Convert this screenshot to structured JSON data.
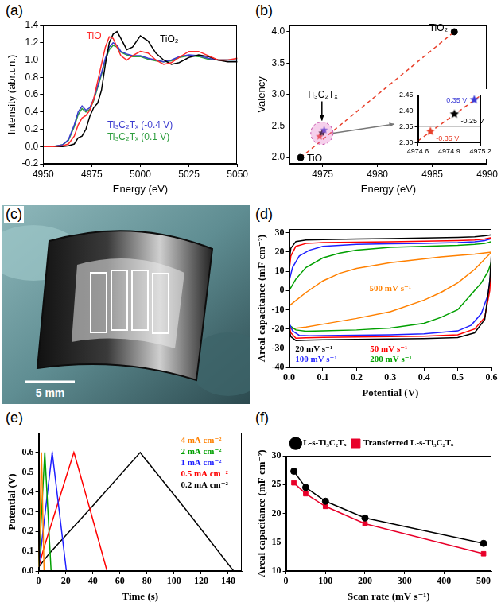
{
  "chart_data": [
    {
      "panel": "(a)",
      "type": "line",
      "xlabel": "Energy (eV)",
      "ylabel": "Intensity (abr.un.)",
      "xlim": [
        4950,
        5050
      ],
      "xticks": [
        4950,
        4975,
        5000,
        5025,
        5050
      ],
      "ylim": [
        -0.2,
        1.4
      ],
      "yticks": [
        -0.2,
        {
          "value": 0,
          "label": "0.0"
        },
        0.2,
        0.4,
        0.6,
        0.8,
        {
          "value": 1,
          "label": "1.0"
        },
        1.2,
        1.4
      ],
      "grid": false,
      "x": [
        4950,
        4955,
        4960,
        4963,
        4966,
        4968,
        4970,
        4972,
        4974,
        4976,
        4978,
        4980,
        4982,
        4984,
        4986,
        4988,
        4990,
        4993,
        4996,
        5000,
        5004,
        5008,
        5012,
        5016,
        5020,
        5025,
        5030,
        5035,
        5040,
        5045,
        5050
      ],
      "series": [
        {
          "name": "TiO",
          "color": "#ff2a2a",
          "values": [
            0,
            0,
            0.01,
            0.03,
            0.12,
            0.25,
            0.33,
            0.36,
            0.42,
            0.55,
            0.75,
            0.95,
            1.15,
            1.27,
            1.25,
            1.15,
            1.05,
            1.0,
            1.05,
            1.1,
            1.08,
            1.0,
            0.95,
            0.97,
            1.03,
            1.1,
            1.1,
            1.05,
            1.0,
            1.0,
            1.02
          ]
        },
        {
          "name": "TiO₂",
          "color": "#000000",
          "values": [
            0,
            0,
            0,
            0.01,
            0.03,
            0.1,
            0.12,
            0.2,
            0.35,
            0.45,
            0.5,
            0.65,
            0.95,
            1.2,
            1.3,
            1.33,
            1.25,
            1.12,
            1.15,
            1.28,
            1.22,
            1.08,
            1.0,
            0.95,
            0.97,
            1.03,
            1.06,
            1.04,
            1.0,
            0.98,
            0.98
          ]
        },
        {
          "name": "Ti₃C₂Tₓ (-0.4 V)",
          "color": "#3a3acf",
          "values": [
            0,
            0,
            0.02,
            0.08,
            0.25,
            0.4,
            0.47,
            0.42,
            0.45,
            0.55,
            0.7,
            0.85,
            1.02,
            1.15,
            1.2,
            1.17,
            1.1,
            1.07,
            1.05,
            1.05,
            1.02,
            1.0,
            0.98,
            1.0,
            1.04,
            1.06,
            1.05,
            1.02,
            1.0,
            1.0,
            1.0
          ]
        },
        {
          "name": "Ti₃C₂Tₓ (0.1 V)",
          "color": "#2e9e3e",
          "values": [
            0,
            0,
            0.02,
            0.07,
            0.23,
            0.37,
            0.44,
            0.4,
            0.43,
            0.53,
            0.68,
            0.83,
            1.0,
            1.12,
            1.17,
            1.15,
            1.09,
            1.06,
            1.04,
            1.04,
            1.01,
            0.99,
            0.98,
            0.99,
            1.03,
            1.05,
            1.04,
            1.01,
            1.0,
            1.0,
            1.0
          ]
        }
      ]
    },
    {
      "panel": "(b)",
      "type": "scatter",
      "xlabel": "Energy (eV)",
      "ylabel": "Valency",
      "xlim": [
        4972,
        4990
      ],
      "xticks": [
        4975,
        4980,
        4985,
        4990
      ],
      "ylim": [
        1.9,
        4.1
      ],
      "yticks": [
        {
          "value": 2,
          "label": "2.0"
        },
        2.5,
        {
          "value": 3,
          "label": "3.0"
        },
        3.5,
        {
          "value": 4,
          "label": "4.0"
        }
      ],
      "grid": false,
      "series": [
        {
          "name": "TiO",
          "color": "#000000",
          "marker": "circle",
          "x": [
            4973
          ],
          "values": [
            2.0
          ]
        },
        {
          "name": "TiO₂",
          "color": "#000000",
          "marker": "circle",
          "x": [
            4987
          ],
          "values": [
            4.0
          ]
        },
        {
          "name": "Ti₃C₂Tₓ",
          "colors": [
            "#e8412c",
            "#000000",
            "#3b3bd6"
          ],
          "marker": "star",
          "x": [
            4974.72,
            4974.95,
            4975.14
          ],
          "values": [
            2.335,
            2.39,
            2.435
          ]
        },
        {
          "type": "line",
          "line_style": "dashed",
          "color": "#e8412c",
          "x": [
            4973,
            4987
          ],
          "values": [
            2.0,
            4.0
          ]
        }
      ],
      "inset": {
        "type": "scatter",
        "xlim": [
          4974.6,
          4975.2
        ],
        "xticks": [
          4974.6,
          4974.9,
          4975.2
        ],
        "ylim": [
          2.3,
          2.45
        ],
        "yticks": [
          {
            "value": 2.3,
            "label": "2.30"
          },
          2.35,
          {
            "value": 2.4,
            "label": "2.40"
          },
          2.45
        ],
        "grid": true,
        "series": [
          {
            "name": "-0.35 V",
            "color": "#e8412c",
            "marker": "star",
            "x": [
              4974.72
            ],
            "values": [
              2.335
            ]
          },
          {
            "name": "-0.25 V",
            "color": "#000000",
            "marker": "star",
            "x": [
              4974.95
            ],
            "values": [
              2.39
            ]
          },
          {
            "name": "0.35 V",
            "color": "#3b3bd6",
            "marker": "star",
            "x": [
              4975.14
            ],
            "values": [
              2.435
            ]
          },
          {
            "type": "line",
            "line_style": "dashed",
            "color": "#e8412c",
            "x": [
              4974.6,
              4975.2
            ],
            "values": [
              2.305,
              2.448
            ]
          }
        ]
      }
    },
    {
      "panel": "(d)",
      "type": "line",
      "xlabel": "Potential (V)",
      "ylabel": "Areal capacitance (mF cm⁻²)",
      "xlim": [
        0,
        0.6
      ],
      "xticks": [
        {
          "value": 0,
          "label": "0.0"
        },
        0.1,
        0.2,
        0.3,
        0.4,
        0.5,
        0.6
      ],
      "ylim": [
        -40,
        32
      ],
      "yticks": [
        -40,
        -30,
        -20,
        -10,
        0,
        10,
        20,
        30
      ],
      "grid": false,
      "series": [
        {
          "name": "20 mV s⁻¹",
          "color": "#000000",
          "x": [
            0,
            0.005,
            0.02,
            0.05,
            0.1,
            0.2,
            0.3,
            0.4,
            0.5,
            0.55,
            0.58,
            0.6,
            0.6,
            0.595,
            0.58,
            0.55,
            0.5,
            0.4,
            0.3,
            0.2,
            0.1,
            0.05,
            0.02,
            0.005,
            0,
            0
          ],
          "values": [
            15,
            22,
            25.5,
            26.3,
            26.5,
            26.8,
            27,
            27.3,
            27.7,
            28,
            28.5,
            29,
            20,
            5,
            -15,
            -22,
            -24.5,
            -25,
            -25.2,
            -25.4,
            -25.6,
            -25.8,
            -26,
            -24,
            -20,
            15
          ]
        },
        {
          "name": "50 mV s⁻¹",
          "color": "#ff0000",
          "x": [
            0,
            0.005,
            0.02,
            0.05,
            0.1,
            0.2,
            0.3,
            0.4,
            0.5,
            0.55,
            0.58,
            0.6,
            0.6,
            0.595,
            0.58,
            0.55,
            0.5,
            0.4,
            0.3,
            0.2,
            0.1,
            0.05,
            0.02,
            0.005,
            0,
            0
          ],
          "values": [
            10,
            18,
            23,
            24.5,
            25,
            25.2,
            25.4,
            25.7,
            26,
            26.3,
            26.8,
            27.5,
            16,
            0,
            -14,
            -20,
            -23,
            -23.8,
            -24,
            -24.2,
            -24.4,
            -24.6,
            -24.8,
            -22,
            -18,
            10
          ]
        },
        {
          "name": "100 mV s⁻¹",
          "color": "#1f1fff",
          "x": [
            0,
            0.01,
            0.03,
            0.06,
            0.1,
            0.2,
            0.3,
            0.4,
            0.5,
            0.55,
            0.58,
            0.6,
            0.6,
            0.59,
            0.57,
            0.54,
            0.5,
            0.4,
            0.3,
            0.2,
            0.1,
            0.06,
            0.03,
            0.01,
            0,
            0
          ],
          "values": [
            5,
            12,
            18,
            21,
            23,
            24,
            24.3,
            24.6,
            25,
            25.4,
            26,
            27,
            12,
            -2,
            -12,
            -18,
            -21,
            -22.5,
            -23,
            -23.2,
            -23.4,
            -23.6,
            -23.3,
            -21,
            -17,
            5
          ]
        },
        {
          "name": "200 mV s⁻¹",
          "color": "#00a000",
          "x": [
            0,
            0.02,
            0.05,
            0.1,
            0.15,
            0.2,
            0.3,
            0.4,
            0.5,
            0.55,
            0.58,
            0.6,
            0.6,
            0.59,
            0.57,
            0.55,
            0.5,
            0.45,
            0.4,
            0.3,
            0.2,
            0.1,
            0.05,
            0.02,
            0,
            0
          ],
          "values": [
            0,
            6,
            12,
            17,
            19.5,
            21,
            22.5,
            23,
            23.5,
            24,
            24.5,
            25.5,
            15,
            10,
            4,
            0,
            -10,
            -14,
            -17,
            -19.5,
            -20.5,
            -21,
            -21.2,
            -20.5,
            -18,
            0
          ]
        },
        {
          "name": "500 mV s⁻¹",
          "color": "#ff8000",
          "x": [
            0,
            0.05,
            0.1,
            0.15,
            0.2,
            0.3,
            0.4,
            0.45,
            0.5,
            0.55,
            0.6,
            0.6,
            0.55,
            0.5,
            0.45,
            0.4,
            0.3,
            0.2,
            0.1,
            0.05,
            0,
            0
          ],
          "values": [
            -8,
            -1,
            5,
            9,
            11.5,
            14.5,
            16.5,
            17.5,
            18.2,
            19,
            20,
            20,
            11,
            4,
            -1,
            -5,
            -11,
            -14.5,
            -17.5,
            -19,
            -20,
            -8
          ]
        }
      ]
    },
    {
      "panel": "(e)",
      "type": "line",
      "xlabel": "Time (s)",
      "ylabel": "Potential (V)",
      "xlim": [
        0,
        150
      ],
      "xticks": [
        0,
        20,
        40,
        60,
        80,
        100,
        120,
        140
      ],
      "ylim": [
        0,
        0.7
      ],
      "yticks": [
        {
          "value": 0,
          "label": "0.0"
        },
        0.1,
        0.2,
        0.3,
        0.4,
        0.5,
        0.6
      ],
      "grid": false,
      "series": [
        {
          "name": "4 mA cm⁻²",
          "color": "#ff8000",
          "x": [
            0,
            0.5,
            2,
            2.1,
            4
          ],
          "values": [
            0.02,
            0.12,
            0.6,
            0.59,
            0
          ]
        },
        {
          "name": "2 mA cm⁻²",
          "color": "#00a000",
          "x": [
            0,
            1,
            4.5,
            4.6,
            9.2
          ],
          "values": [
            0.02,
            0.14,
            0.6,
            0.59,
            0
          ]
        },
        {
          "name": "1 mA cm⁻²",
          "color": "#1f1fff",
          "x": [
            0,
            2,
            10,
            10.2,
            20.5
          ],
          "values": [
            0.02,
            0.13,
            0.6,
            0.59,
            0
          ]
        },
        {
          "name": "0.5 mA cm⁻²",
          "color": "#ff0000",
          "x": [
            0,
            4,
            15,
            26,
            26.5,
            38,
            50.5
          ],
          "values": [
            0.02,
            0.12,
            0.36,
            0.6,
            0.59,
            0.31,
            0
          ]
        },
        {
          "name": "0.2 mA cm⁻²",
          "color": "#000000",
          "x": [
            0,
            8,
            40,
            75,
            76,
            110,
            144
          ],
          "values": [
            0.02,
            0.09,
            0.33,
            0.6,
            0.59,
            0.3,
            0
          ]
        }
      ]
    },
    {
      "panel": "(f)",
      "type": "line",
      "xlabel": "Scan rate (mV s⁻¹)",
      "ylabel": "Areal capacitance (mF cm⁻²)",
      "xlim": [
        0,
        520
      ],
      "xticks": [
        0,
        100,
        200,
        300,
        400,
        500
      ],
      "ylim": [
        10,
        30
      ],
      "yticks": [
        10,
        15,
        20,
        25,
        30
      ],
      "grid": false,
      "legend": "top",
      "x": [
        20,
        50,
        100,
        200,
        500
      ],
      "series": [
        {
          "name": "L-s-Ti₃C₂Tₓ",
          "color": "#000000",
          "marker": "circle",
          "values": [
            27.3,
            24.5,
            22.1,
            19.2,
            14.8
          ]
        },
        {
          "name": "Transferred L-s-Ti₃C₂Tₓ",
          "color": "#e8002a",
          "marker": "square",
          "values": [
            25.3,
            23.4,
            21.2,
            18.2,
            13.0
          ]
        }
      ]
    }
  ],
  "photo": {
    "panel": "(c)",
    "scale_bar": "5 mm"
  }
}
